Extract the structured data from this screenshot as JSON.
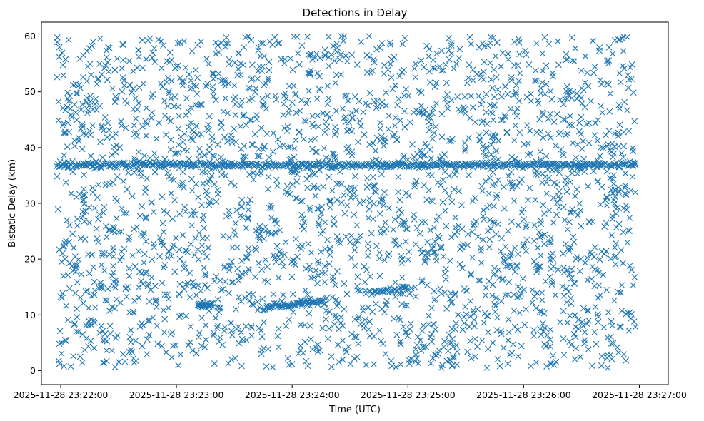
{
  "chart_data": {
    "type": "scatter",
    "title": "Detections in Delay",
    "xlabel": "Time (UTC)",
    "ylabel": "Bistatic Delay (km)",
    "marker": "x",
    "color": "#1f77b4",
    "grid": false,
    "legend": "none",
    "xlim": [
      "2025-11-28 23:21:50",
      "2025-11-28 23:27:15"
    ],
    "ylim": [
      -2.5,
      62.5
    ],
    "x_ticks": [
      "2025-11-28 23:22:00",
      "2025-11-28 23:23:00",
      "2025-11-28 23:24:00",
      "2025-11-28 23:25:00",
      "2025-11-28 23:26:00",
      "2025-11-28 23:27:00"
    ],
    "y_ticks": [
      0,
      10,
      20,
      30,
      40,
      50,
      60
    ],
    "time_range": [
      "2025-11-28 23:21:58",
      "2025-11-28 23:26:58"
    ],
    "delay_range": [
      0.5,
      60
    ],
    "clutter_points": 2600,
    "tracks": [
      {
        "points": [
          [
            "2025-11-28 23:21:58",
            36.9
          ],
          [
            "2025-11-28 23:26:58",
            36.9
          ]
        ],
        "count": 520,
        "spread": 0.25
      },
      {
        "points": [
          [
            "2025-11-28 23:23:11",
            11.8
          ],
          [
            "2025-11-28 23:23:19",
            11.9
          ]
        ],
        "count": 25,
        "spread": 0.25
      },
      {
        "points": [
          [
            "2025-11-28 23:23:45",
            11.3
          ],
          [
            "2025-11-28 23:24:18",
            12.5
          ]
        ],
        "count": 70,
        "spread": 0.25
      },
      {
        "points": [
          [
            "2025-11-28 23:24:40",
            14.0
          ],
          [
            "2025-11-28 23:25:00",
            14.8
          ]
        ],
        "count": 35,
        "spread": 0.25
      }
    ]
  }
}
